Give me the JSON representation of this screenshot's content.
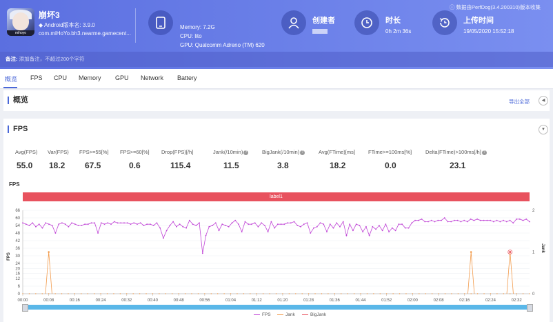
{
  "app": {
    "name": "崩坏3",
    "version": "Android版本名: 3.9.0",
    "package": "com.miHoYo.bh3.nearme.gamecent..."
  },
  "device": {
    "memory": "Memory: 7.2G",
    "cpu": "CPU: lito",
    "gpu": "GPU: Qualcomm Adreno (TM) 620"
  },
  "creator": {
    "label": "创建者"
  },
  "duration": {
    "label": "时长",
    "value": "0h 2m 36s"
  },
  "upload": {
    "label": "上传时间",
    "value": "19/05/2020 15:52:18"
  },
  "perfdog_note": "数据由PerfDog(3.4.200310)版本收集",
  "remark": {
    "label": "备注:",
    "placeholder": "添加备注，不超过200个字符"
  },
  "tabs": [
    "概览",
    "FPS",
    "CPU",
    "Memory",
    "GPU",
    "Network",
    "Battery"
  ],
  "overview": {
    "title": "概览",
    "export": "导出全部"
  },
  "fps_section": {
    "title": "FPS"
  },
  "stats": [
    {
      "label": "Avg(FPS)",
      "value": "55.0"
    },
    {
      "label": "Var(FPS)",
      "value": "18.2"
    },
    {
      "label": "FPS>=55[%]",
      "value": "67.5"
    },
    {
      "label": "FPS>=60[%]",
      "value": "0.6"
    },
    {
      "label": "Drop(FPS)[/h]",
      "value": "115.4"
    },
    {
      "label": "Jank(/10min)",
      "value": "11.5"
    },
    {
      "label": "BigJank(/10min)",
      "value": "3.8"
    },
    {
      "label": "Avg(FTime)[ms]",
      "value": "18.2"
    },
    {
      "label": "FTime>=100ms[%]",
      "value": "0.0"
    },
    {
      "label": "Delta(FTime)>100ms[/h]",
      "value": "23.1"
    }
  ],
  "chart_data": {
    "type": "line",
    "title": "FPS",
    "label_band": "label1",
    "ylabel": "FPS",
    "y2label": "Jank",
    "ylim": [
      0,
      66
    ],
    "y2lim": [
      0,
      2
    ],
    "yticks": [
      0,
      6,
      12,
      16,
      20,
      24,
      30,
      36,
      42,
      48,
      54,
      60,
      66
    ],
    "y2ticks": [
      0,
      1,
      2
    ],
    "xlim": [
      0,
      156
    ],
    "xticks": [
      "00:00",
      "00:08",
      "00:16",
      "00:24",
      "00:32",
      "00:40",
      "00:48",
      "00:56",
      "01:04",
      "01:12",
      "01:20",
      "01:28",
      "01:36",
      "01:44",
      "01:52",
      "02:00",
      "02:08",
      "02:16",
      "02:24",
      "02:32"
    ],
    "series": [
      {
        "name": "FPS",
        "color": "#c045d6",
        "values": [
          56,
          55,
          54,
          56,
          53,
          55,
          52,
          56,
          55,
          54,
          48,
          55,
          56,
          55,
          53,
          56,
          55,
          54,
          54,
          55,
          55,
          56,
          56,
          48,
          56,
          55,
          56,
          55,
          57,
          56,
          56,
          56,
          56,
          55,
          56,
          55,
          56,
          54,
          55,
          55,
          54,
          56,
          52,
          44,
          50,
          54,
          57,
          53,
          55,
          53,
          52,
          58,
          55,
          54,
          56,
          32,
          46,
          53,
          54,
          56,
          50,
          55,
          54,
          53,
          56,
          58,
          55,
          49,
          57,
          55,
          55,
          56,
          53,
          56,
          54,
          49,
          57,
          52,
          55,
          55,
          55,
          56,
          56,
          57,
          54,
          53,
          55,
          56,
          48,
          52,
          53,
          56,
          55,
          49,
          55,
          52,
          56,
          53,
          57,
          46,
          55,
          50,
          55,
          54,
          49,
          53,
          46,
          53,
          51,
          54,
          50,
          55,
          49,
          52,
          50,
          55,
          55,
          52,
          52,
          56,
          58,
          58,
          59,
          57,
          57,
          58,
          57,
          58,
          58,
          60,
          57,
          57,
          58,
          58,
          57,
          58,
          57,
          59,
          58,
          59,
          58,
          58,
          58,
          58,
          57,
          58,
          57,
          58,
          57,
          58,
          56,
          59,
          59,
          58,
          59,
          57
        ]
      },
      {
        "name": "Jank",
        "color": "#f29a4a",
        "spikes": [
          {
            "t": 8,
            "v": 1
          },
          {
            "t": 138,
            "v": 1
          },
          {
            "t": 150,
            "v": 1
          }
        ]
      },
      {
        "name": "BigJank",
        "color": "#e8525e",
        "spikes": [
          {
            "t": 150,
            "v": 1
          }
        ]
      }
    ]
  }
}
